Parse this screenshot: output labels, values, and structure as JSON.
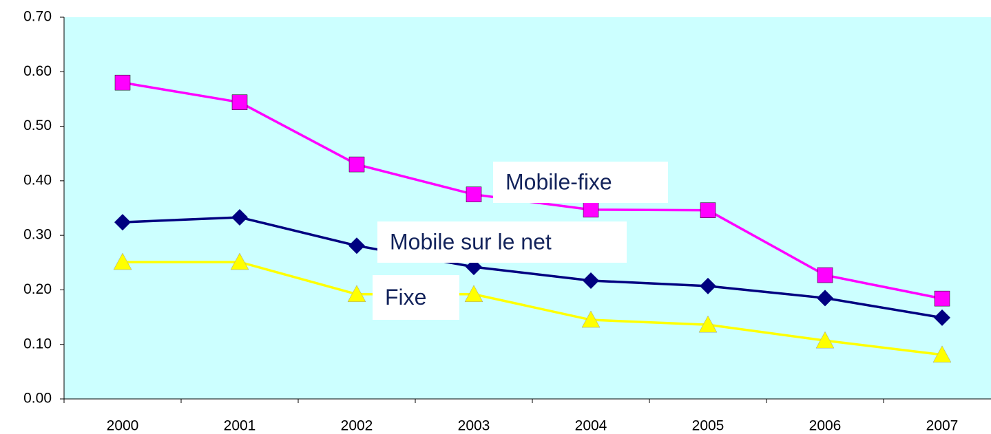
{
  "chart_data": {
    "type": "line",
    "categories": [
      "2000",
      "2001",
      "2002",
      "2003",
      "2004",
      "2005",
      "2006",
      "2007"
    ],
    "series": [
      {
        "name": "Mobile-fixe",
        "color": "#ff00ff",
        "marker": "square",
        "values": [
          0.58,
          0.544,
          0.43,
          0.375,
          0.347,
          0.346,
          0.227,
          0.184
        ]
      },
      {
        "name": "Mobile sur le net",
        "color": "#000080",
        "marker": "diamond",
        "values": [
          0.324,
          0.333,
          0.281,
          0.242,
          0.217,
          0.207,
          0.185,
          0.149
        ]
      },
      {
        "name": "Fixe",
        "color": "#ffff00",
        "marker": "triangle",
        "values": [
          0.251,
          0.251,
          0.192,
          0.192,
          0.145,
          0.136,
          0.107,
          0.081
        ]
      }
    ],
    "ylim": [
      0,
      0.7
    ],
    "yticks": [
      {
        "value": 0,
        "label": "0.00"
      },
      {
        "value": 0.1,
        "label": "0.10"
      },
      {
        "value": 0.2,
        "label": "0.20"
      },
      {
        "value": 0.3,
        "label": "0.30"
      },
      {
        "value": 0.4,
        "label": "0.40"
      },
      {
        "value": 0.5,
        "label": "0.50"
      },
      {
        "value": 0.6,
        "label": "0.60"
      },
      {
        "value": 0.7,
        "label": "0.70"
      }
    ],
    "plot_background": "#ccffff"
  }
}
